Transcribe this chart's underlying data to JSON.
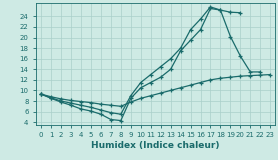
{
  "xlabel": "Humidex (Indice chaleur)",
  "bg_color": "#ceeae4",
  "grid_color": "#aacfca",
  "line_color": "#1a6b6b",
  "xlim": [
    -0.5,
    23.5
  ],
  "ylim": [
    3.5,
    26.5
  ],
  "xticks": [
    0,
    1,
    2,
    3,
    4,
    5,
    6,
    7,
    8,
    9,
    10,
    11,
    12,
    13,
    14,
    15,
    16,
    17,
    18,
    19,
    20,
    21,
    22,
    23
  ],
  "yticks": [
    4,
    6,
    8,
    10,
    12,
    14,
    16,
    18,
    20,
    22,
    24
  ],
  "line1_x": [
    0,
    1,
    2,
    3,
    4,
    5,
    6,
    7,
    8,
    9,
    10,
    11,
    12,
    13,
    14,
    15,
    16,
    17,
    18,
    19,
    20,
    21,
    22,
    23
  ],
  "line1_y": [
    9.3,
    8.5,
    7.8,
    7.2,
    6.5,
    6.1,
    5.5,
    4.5,
    4.3,
    8.5,
    10.5,
    11.5,
    12.5,
    14.0,
    17.5,
    19.5,
    21.5,
    25.5,
    25.2,
    20.2,
    16.5,
    13.5,
    13.5,
    null
  ],
  "line2_x": [
    0,
    1,
    2,
    3,
    4,
    5,
    6,
    7,
    8,
    9,
    10,
    11,
    12,
    13,
    14,
    15,
    16,
    17,
    18,
    19,
    20,
    21,
    22,
    23
  ],
  "line2_y": [
    9.3,
    8.6,
    8.0,
    7.6,
    7.2,
    6.8,
    6.3,
    5.8,
    5.5,
    9.0,
    11.5,
    13.0,
    14.5,
    16.0,
    18.0,
    21.5,
    23.5,
    25.8,
    25.2,
    24.8,
    24.7,
    null,
    null,
    null
  ],
  "line3_x": [
    0,
    1,
    2,
    3,
    4,
    5,
    6,
    7,
    8,
    9,
    10,
    11,
    12,
    13,
    14,
    15,
    16,
    17,
    18,
    19,
    20,
    21,
    22,
    23
  ],
  "line3_y": [
    9.3,
    8.8,
    8.4,
    8.1,
    7.9,
    7.7,
    7.4,
    7.2,
    7.0,
    7.8,
    8.5,
    9.0,
    9.5,
    10.0,
    10.5,
    11.0,
    11.5,
    12.0,
    12.3,
    12.5,
    12.7,
    12.8,
    12.9,
    13.0
  ]
}
